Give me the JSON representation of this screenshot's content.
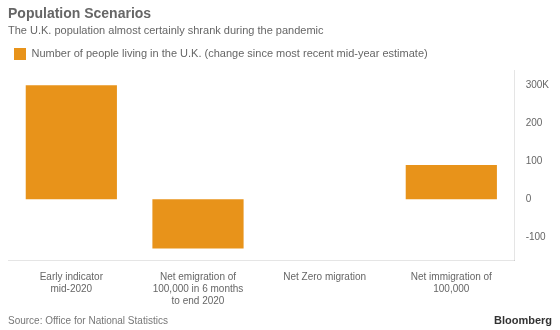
{
  "chart_data": {
    "type": "bar",
    "title": "Population Scenarios",
    "subtitle": "The U.K. population almost certainly shrank during the pandemic",
    "categories": [
      "Early indicator\nmid-2020",
      "Net emigration of\n100,000 in 6 months\nto end 2020",
      "Net Zero migration",
      "Net immigration of\n100,000"
    ],
    "series": [
      {
        "name": "Number of people living in the U.K. (change since most recent mid-year estimate)",
        "color": "#E8931A",
        "values": [
          300,
          -130,
          0,
          90
        ]
      }
    ],
    "ylim": [
      -160,
      340
    ],
    "yticks": [
      {
        "value": 300,
        "label": "300K"
      },
      200,
      100,
      0,
      -100
    ],
    "grid": false,
    "legend": "top left",
    "annotations": [
      "Source: Office for National Statistics",
      "Bloomberg"
    ]
  }
}
